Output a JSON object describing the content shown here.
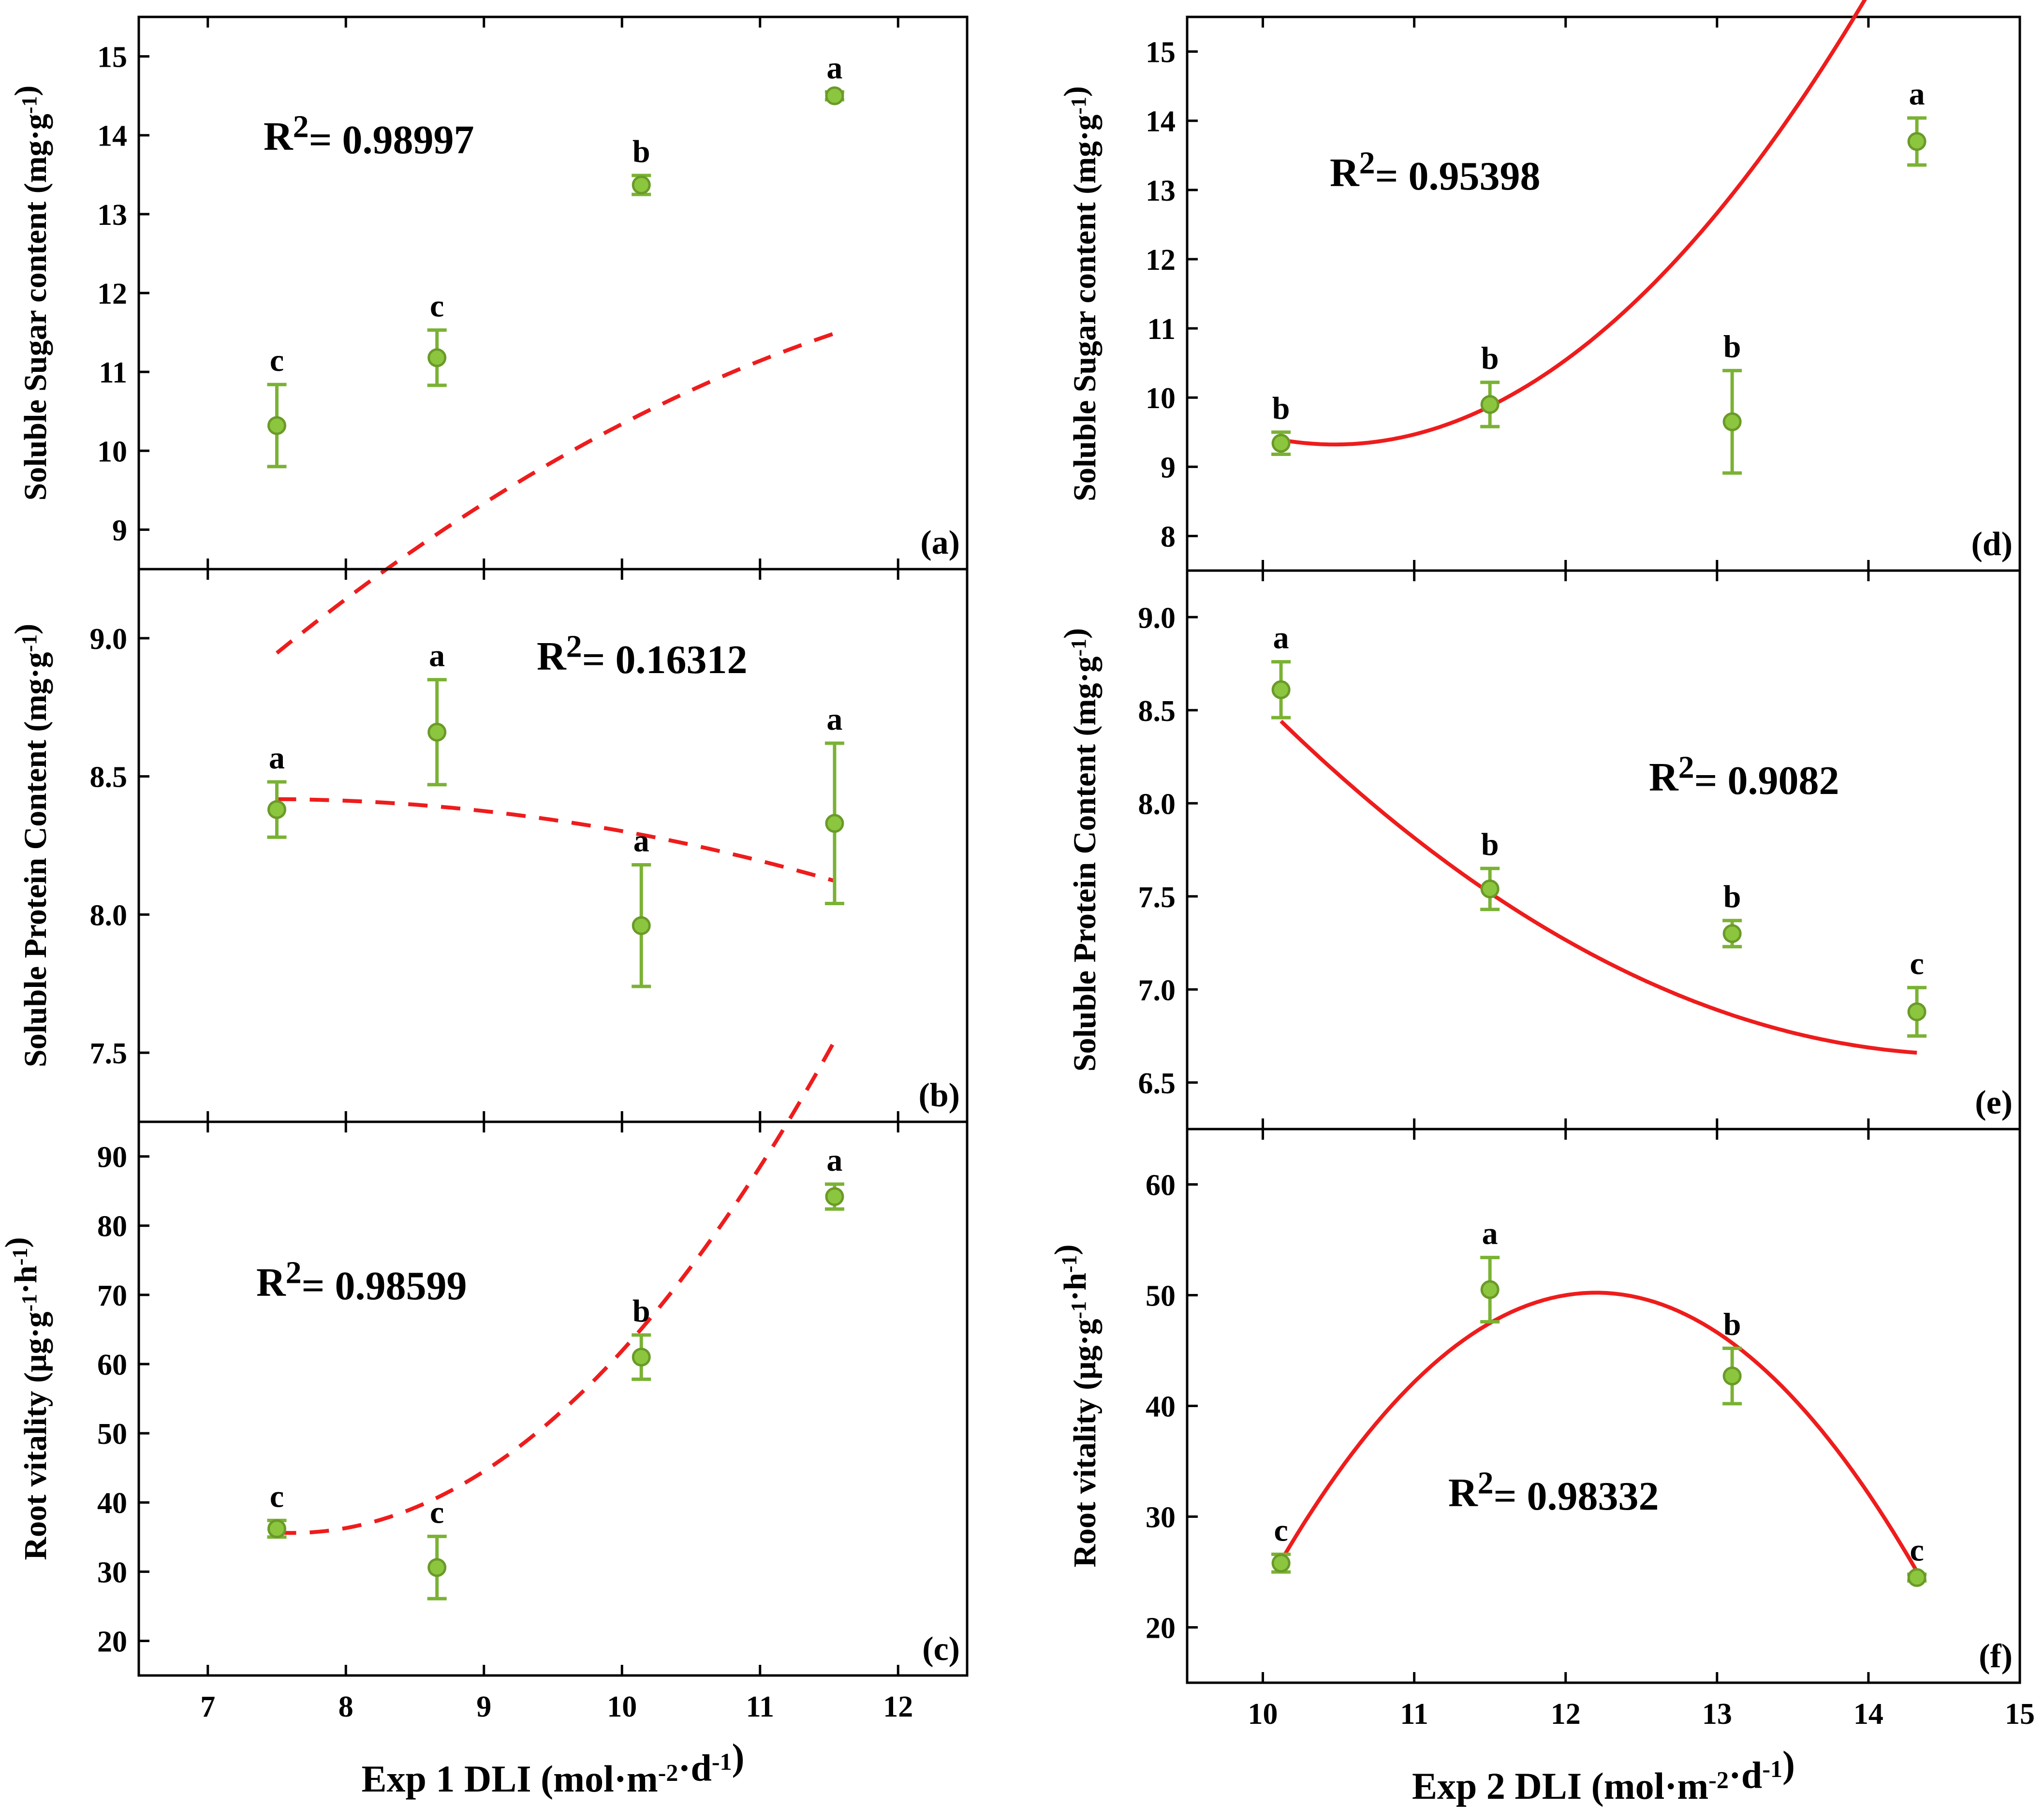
{
  "chart_data": [
    {
      "id": "a",
      "panel_label": "(a)",
      "type": "scatter",
      "ylabel": "Soluble Sugar content",
      "yunit": "(mg·g-1)",
      "ylim": [
        8.5,
        15.5
      ],
      "yticks": [
        9,
        10,
        11,
        12,
        13,
        14,
        15
      ],
      "xlim": [
        6.5,
        12.5
      ],
      "x": [
        7.5,
        8.66,
        10.14,
        11.54
      ],
      "y": [
        10.32,
        11.18,
        13.37,
        14.5
      ],
      "err": [
        0.52,
        0.35,
        0.12,
        0.05
      ],
      "letters": [
        "c",
        "c",
        "b",
        "a"
      ],
      "fit": {
        "style": "dashed",
        "coeffs": [
          -0.103,
          2.964,
          -9.0
        ],
        "xrange": [
          7.5,
          11.54
        ]
      },
      "r2": "0.98997"
    },
    {
      "id": "b",
      "panel_label": "(b)",
      "type": "scatter",
      "ylabel": "Soluble Protein Content",
      "yunit": "(mg·g-1)",
      "ylim": [
        7.25,
        9.25
      ],
      "yticks": [
        7.5,
        8.0,
        8.5,
        9.0
      ],
      "xlim": [
        6.5,
        12.5
      ],
      "x": [
        7.5,
        8.66,
        10.14,
        11.54
      ],
      "y": [
        8.38,
        8.66,
        7.96,
        8.33
      ],
      "err": [
        0.1,
        0.19,
        0.22,
        0.29
      ],
      "letters": [
        "a",
        "a",
        "a",
        "a"
      ],
      "fit": {
        "style": "dashed",
        "coeffs": [
          -0.0175,
          0.26,
          7.452
        ],
        "xrange": [
          7.5,
          11.54
        ]
      },
      "r2": "0.16312"
    },
    {
      "id": "c",
      "panel_label": "(c)",
      "type": "scatter",
      "ylabel": "Root vitality",
      "yunit": "(μg·g-1·h-1)",
      "ylim": [
        15,
        95
      ],
      "yticks": [
        20,
        30,
        40,
        50,
        60,
        70,
        80,
        90
      ],
      "xlim": [
        6.5,
        12.5
      ],
      "xticks": [
        7,
        8,
        9,
        10,
        11,
        12
      ],
      "xlabel": "Exp 1  DLI (mol·m-2·d-1)",
      "x": [
        7.5,
        8.66,
        10.14,
        11.54
      ],
      "y": [
        36.2,
        30.6,
        61.0,
        84.2
      ],
      "err": [
        1.2,
        4.5,
        3.2,
        1.8
      ],
      "letters": [
        "c",
        "c",
        "b",
        "a"
      ],
      "fit": {
        "style": "dashed",
        "coeffs": [
          4.6,
          -70.0,
          301.9
        ],
        "xrange": [
          7.5,
          11.54
        ]
      },
      "r2": "0.98599"
    },
    {
      "id": "d",
      "panel_label": "(d)",
      "type": "scatter",
      "ylabel": "Soluble Sugar content",
      "yunit": "(mg·g-1)",
      "ylim": [
        7.5,
        15.5
      ],
      "yticks": [
        8,
        9,
        10,
        11,
        12,
        13,
        14,
        15
      ],
      "xlim": [
        9.5,
        15.0
      ],
      "x": [
        10.12,
        11.5,
        13.1,
        14.32
      ],
      "y": [
        9.34,
        9.9,
        9.65,
        13.7
      ],
      "err": [
        0.16,
        0.32,
        0.74,
        0.34
      ],
      "letters": [
        "b",
        "b",
        "b",
        "a"
      ],
      "fit": {
        "style": "solid",
        "coeffs": [
          0.524,
          -10.977,
          66.81
        ],
        "xrange": [
          10.12,
          14.32
        ]
      },
      "r2": "0.95398"
    },
    {
      "id": "e",
      "panel_label": "(e)",
      "type": "scatter",
      "ylabel": "Soluble Protein Content",
      "yunit": "(mg·g-1)",
      "ylim": [
        6.25,
        9.25
      ],
      "yticks": [
        6.5,
        7.0,
        7.5,
        8.0,
        8.5,
        9.0
      ],
      "xlim": [
        9.5,
        15.0
      ],
      "x": [
        10.12,
        11.5,
        13.1,
        14.32
      ],
      "y": [
        8.61,
        7.54,
        7.3,
        6.88
      ],
      "err": [
        0.15,
        0.11,
        0.07,
        0.13
      ],
      "letters": [
        "a",
        "b",
        "b",
        "c"
      ],
      "fit": {
        "style": "solid",
        "coeffs": [
          0.0867,
          -2.543,
          25.297
        ],
        "xrange": [
          10.12,
          14.32
        ]
      },
      "r2": "0.9082"
    },
    {
      "id": "f",
      "panel_label": "(f)",
      "type": "scatter",
      "ylabel": "Root vitality",
      "yunit": "(μg·g-1·h-1)",
      "ylim": [
        15,
        65
      ],
      "yticks": [
        20,
        30,
        40,
        50,
        60
      ],
      "xlim": [
        9.5,
        15.0
      ],
      "xticks": [
        10,
        11,
        12,
        13,
        14,
        15
      ],
      "xlabel": "Exp 2  DLI (mol·m-2·d-1)",
      "x": [
        10.12,
        11.5,
        13.1,
        14.32
      ],
      "y": [
        25.8,
        50.5,
        42.7,
        24.5
      ],
      "err": [
        0.8,
        2.9,
        2.5,
        0.3
      ],
      "letters": [
        "c",
        "a",
        "b",
        "c"
      ],
      "fit": {
        "style": "solid",
        "coeffs": [
          -5.6,
          136.64,
          -783.28
        ],
        "xrange": [
          10.12,
          14.32
        ]
      },
      "r2": "0.98332"
    }
  ]
}
